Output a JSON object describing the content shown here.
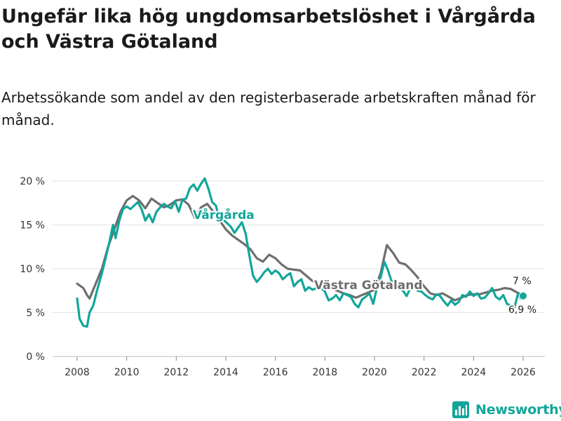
{
  "title": "Ungefär lika hög ungdomsarbetslöshet i Vårgårda och Västra Götaland",
  "subtitle": "Arbetssökande som andel av den registerbaserade arbetskraften månad för månad.",
  "brand": {
    "name": "Newsworthy",
    "color": "#12a69a"
  },
  "chart_data": {
    "type": "line",
    "title": "Ungefär lika hög ungdomsarbetslöshet i Vårgårda och Västra Götaland",
    "xlabel": "",
    "ylabel": "",
    "xlim": [
      2007.5,
      2026.6
    ],
    "ylim": [
      0,
      21
    ],
    "grid": true,
    "x_ticks": [
      2008,
      2010,
      2012,
      2014,
      2016,
      2018,
      2020,
      2022,
      2024,
      2026
    ],
    "x_tick_labels": [
      "2008",
      "2010",
      "2012",
      "2014",
      "2016",
      "2018",
      "2020",
      "2022",
      "2024",
      "2026"
    ],
    "y_ticks": [
      0,
      5,
      10,
      15,
      20
    ],
    "y_tick_labels": [
      "0 %",
      "5 %",
      "10 %",
      "15 %",
      "20 %"
    ],
    "series": [
      {
        "name": "Västra Götaland",
        "label": "Västra Götaland",
        "color": "#6e6e6e",
        "end_label": "7 %",
        "points": [
          [
            2008.0,
            8.3
          ],
          [
            2008.25,
            7.8
          ],
          [
            2008.4,
            7.0
          ],
          [
            2008.5,
            6.6
          ],
          [
            2008.75,
            8.3
          ],
          [
            2009.0,
            10.0
          ],
          [
            2009.25,
            12.5
          ],
          [
            2009.5,
            14.5
          ],
          [
            2009.75,
            16.5
          ],
          [
            2010.0,
            17.8
          ],
          [
            2010.25,
            18.3
          ],
          [
            2010.5,
            17.8
          ],
          [
            2010.75,
            16.9
          ],
          [
            2011.0,
            18.0
          ],
          [
            2011.25,
            17.5
          ],
          [
            2011.5,
            17.0
          ],
          [
            2011.75,
            17.3
          ],
          [
            2012.0,
            17.8
          ],
          [
            2012.25,
            17.9
          ],
          [
            2012.5,
            17.3
          ],
          [
            2012.75,
            15.8
          ],
          [
            2013.0,
            17.0
          ],
          [
            2013.25,
            17.4
          ],
          [
            2013.5,
            16.5
          ],
          [
            2013.75,
            15.5
          ],
          [
            2014.0,
            14.5
          ],
          [
            2014.25,
            13.8
          ],
          [
            2014.5,
            13.3
          ],
          [
            2014.75,
            12.8
          ],
          [
            2015.0,
            12.2
          ],
          [
            2015.25,
            11.2
          ],
          [
            2015.5,
            10.8
          ],
          [
            2015.75,
            11.6
          ],
          [
            2016.0,
            11.2
          ],
          [
            2016.25,
            10.5
          ],
          [
            2016.5,
            10.0
          ],
          [
            2016.75,
            9.9
          ],
          [
            2017.0,
            9.8
          ],
          [
            2017.25,
            9.2
          ],
          [
            2017.5,
            8.6
          ],
          [
            2017.75,
            8.4
          ],
          [
            2018.0,
            7.9
          ],
          [
            2018.25,
            7.8
          ],
          [
            2018.5,
            7.5
          ],
          [
            2018.75,
            7.2
          ],
          [
            2019.0,
            7.0
          ],
          [
            2019.25,
            6.7
          ],
          [
            2019.5,
            7.0
          ],
          [
            2019.75,
            7.3
          ],
          [
            2020.0,
            7.6
          ],
          [
            2020.25,
            9.5
          ],
          [
            2020.5,
            12.7
          ],
          [
            2020.75,
            11.8
          ],
          [
            2021.0,
            10.7
          ],
          [
            2021.25,
            10.5
          ],
          [
            2021.5,
            9.8
          ],
          [
            2021.75,
            9.0
          ],
          [
            2022.0,
            8.0
          ],
          [
            2022.25,
            7.2
          ],
          [
            2022.5,
            7.0
          ],
          [
            2022.75,
            7.2
          ],
          [
            2023.0,
            6.8
          ],
          [
            2023.25,
            6.4
          ],
          [
            2023.5,
            6.7
          ],
          [
            2023.75,
            7.0
          ],
          [
            2024.0,
            7.1
          ],
          [
            2024.25,
            7.1
          ],
          [
            2024.5,
            7.3
          ],
          [
            2024.75,
            7.5
          ],
          [
            2025.0,
            7.6
          ],
          [
            2025.25,
            7.8
          ],
          [
            2025.5,
            7.7
          ],
          [
            2025.75,
            7.3
          ],
          [
            2026.0,
            7.0
          ]
        ]
      },
      {
        "name": "Vårgårda",
        "label": "Vårgårda",
        "color": "#12a69a",
        "end_label": "6,9 %",
        "points": [
          [
            2008.0,
            6.6
          ],
          [
            2008.1,
            4.3
          ],
          [
            2008.25,
            3.5
          ],
          [
            2008.4,
            3.4
          ],
          [
            2008.5,
            5.0
          ],
          [
            2008.65,
            5.8
          ],
          [
            2008.8,
            7.5
          ],
          [
            2009.0,
            9.5
          ],
          [
            2009.15,
            11.2
          ],
          [
            2009.3,
            13.0
          ],
          [
            2009.45,
            15.0
          ],
          [
            2009.55,
            13.5
          ],
          [
            2009.7,
            15.5
          ],
          [
            2009.85,
            16.8
          ],
          [
            2010.0,
            17.1
          ],
          [
            2010.15,
            16.8
          ],
          [
            2010.3,
            17.2
          ],
          [
            2010.45,
            17.6
          ],
          [
            2010.6,
            16.8
          ],
          [
            2010.75,
            15.5
          ],
          [
            2010.9,
            16.2
          ],
          [
            2011.05,
            15.3
          ],
          [
            2011.2,
            16.5
          ],
          [
            2011.35,
            17.0
          ],
          [
            2011.5,
            17.4
          ],
          [
            2011.65,
            17.1
          ],
          [
            2011.8,
            16.9
          ],
          [
            2011.95,
            17.7
          ],
          [
            2012.1,
            16.5
          ],
          [
            2012.25,
            17.9
          ],
          [
            2012.4,
            18.0
          ],
          [
            2012.55,
            19.2
          ],
          [
            2012.7,
            19.6
          ],
          [
            2012.85,
            18.9
          ],
          [
            2013.0,
            19.7
          ],
          [
            2013.15,
            20.3
          ],
          [
            2013.3,
            19.1
          ],
          [
            2013.45,
            17.6
          ],
          [
            2013.6,
            17.2
          ],
          [
            2013.75,
            15.5
          ],
          [
            2013.9,
            15.6
          ],
          [
            2014.05,
            15.2
          ],
          [
            2014.2,
            14.8
          ],
          [
            2014.35,
            14.1
          ],
          [
            2014.5,
            14.7
          ],
          [
            2014.65,
            15.3
          ],
          [
            2014.8,
            14.0
          ],
          [
            2014.95,
            11.5
          ],
          [
            2015.1,
            9.2
          ],
          [
            2015.25,
            8.5
          ],
          [
            2015.4,
            9.0
          ],
          [
            2015.55,
            9.6
          ],
          [
            2015.7,
            10.0
          ],
          [
            2015.85,
            9.4
          ],
          [
            2016.0,
            9.8
          ],
          [
            2016.15,
            9.5
          ],
          [
            2016.3,
            8.8
          ],
          [
            2016.45,
            9.2
          ],
          [
            2016.6,
            9.5
          ],
          [
            2016.75,
            8.0
          ],
          [
            2016.9,
            8.5
          ],
          [
            2017.05,
            8.8
          ],
          [
            2017.2,
            7.5
          ],
          [
            2017.35,
            7.9
          ],
          [
            2017.5,
            7.6
          ],
          [
            2017.65,
            7.8
          ],
          [
            2017.8,
            8.0
          ],
          [
            2018.0,
            7.4
          ],
          [
            2018.15,
            6.4
          ],
          [
            2018.3,
            6.6
          ],
          [
            2018.45,
            7.0
          ],
          [
            2018.6,
            6.4
          ],
          [
            2018.75,
            7.2
          ],
          [
            2018.9,
            7.0
          ],
          [
            2019.05,
            6.8
          ],
          [
            2019.2,
            6.0
          ],
          [
            2019.35,
            5.6
          ],
          [
            2019.5,
            6.5
          ],
          [
            2019.65,
            6.8
          ],
          [
            2019.8,
            7.2
          ],
          [
            2019.95,
            6.0
          ],
          [
            2020.1,
            7.8
          ],
          [
            2020.25,
            9.0
          ],
          [
            2020.4,
            10.8
          ],
          [
            2020.55,
            9.8
          ],
          [
            2020.7,
            8.5
          ],
          [
            2020.85,
            8.2
          ],
          [
            2021.0,
            7.9
          ],
          [
            2021.15,
            7.5
          ],
          [
            2021.3,
            6.9
          ],
          [
            2021.45,
            7.8
          ],
          [
            2021.6,
            8.2
          ],
          [
            2021.75,
            7.5
          ],
          [
            2021.9,
            7.4
          ],
          [
            2022.05,
            7.0
          ],
          [
            2022.2,
            6.7
          ],
          [
            2022.35,
            6.5
          ],
          [
            2022.5,
            7.1
          ],
          [
            2022.65,
            6.9
          ],
          [
            2022.8,
            6.3
          ],
          [
            2022.95,
            5.8
          ],
          [
            2023.1,
            6.4
          ],
          [
            2023.25,
            5.9
          ],
          [
            2023.4,
            6.2
          ],
          [
            2023.55,
            7.0
          ],
          [
            2023.7,
            6.8
          ],
          [
            2023.85,
            7.4
          ],
          [
            2024.0,
            6.9
          ],
          [
            2024.15,
            7.2
          ],
          [
            2024.3,
            6.6
          ],
          [
            2024.45,
            6.7
          ],
          [
            2024.6,
            7.2
          ],
          [
            2024.75,
            7.8
          ],
          [
            2024.9,
            6.8
          ],
          [
            2025.05,
            6.5
          ],
          [
            2025.2,
            7.0
          ],
          [
            2025.35,
            6.0
          ],
          [
            2025.5,
            5.8
          ],
          [
            2025.65,
            5.6
          ],
          [
            2025.8,
            7.2
          ],
          [
            2025.9,
            6.6
          ],
          [
            2026.0,
            6.9
          ]
        ]
      }
    ],
    "legend": "inline"
  }
}
